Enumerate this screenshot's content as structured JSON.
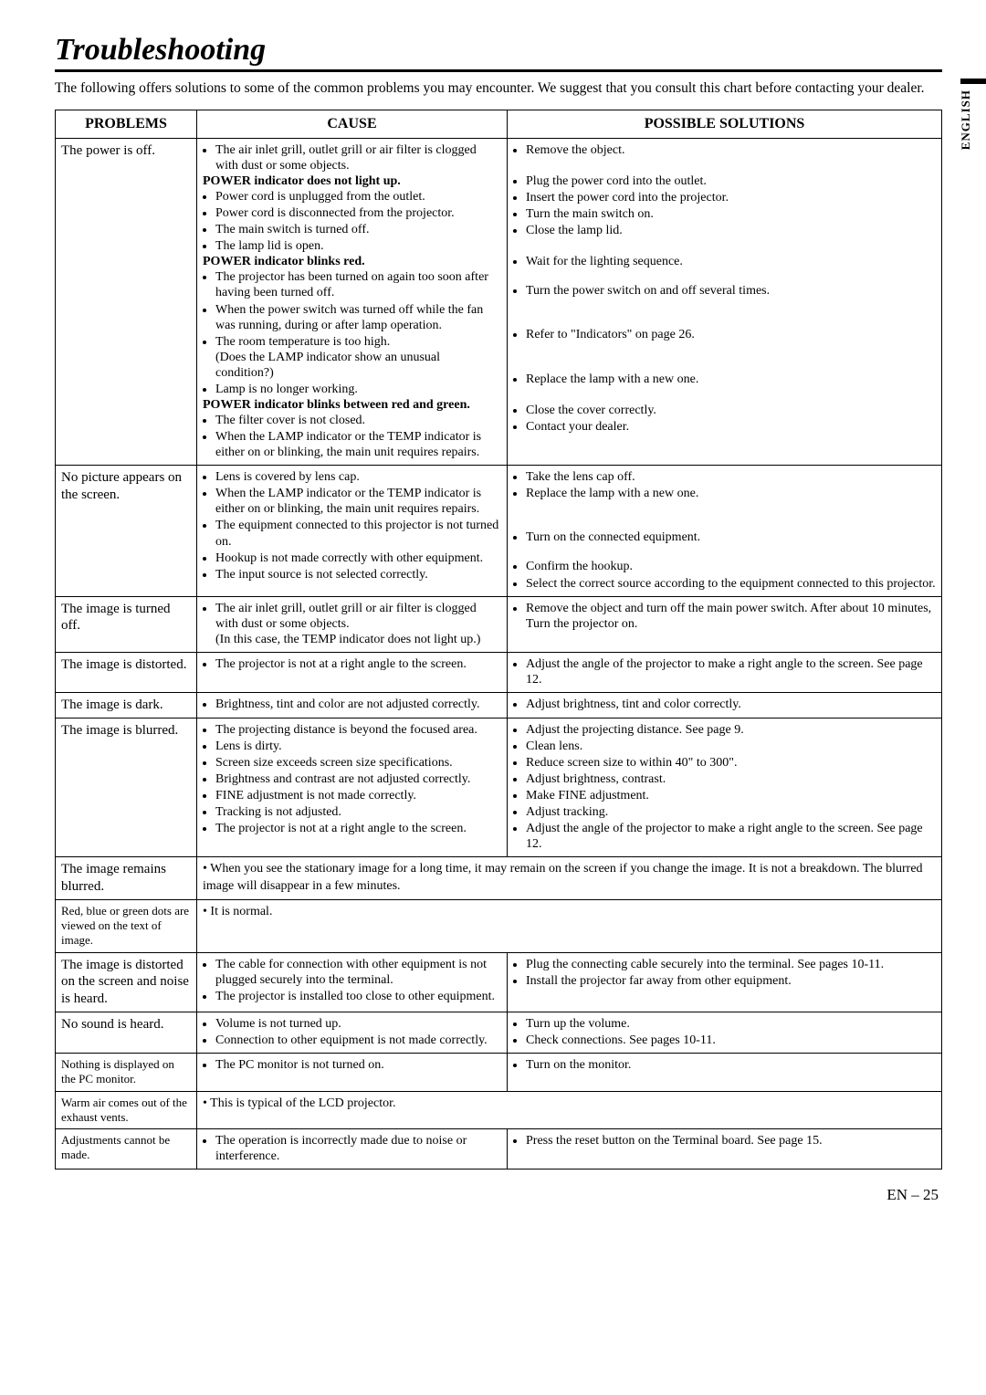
{
  "page": {
    "title": "Troubleshooting",
    "intro": "The following offers solutions to some of the common problems you may encounter. We suggest that you consult this chart before contacting your dealer.",
    "side_label": "ENGLISH",
    "footer": "EN – 25"
  },
  "headers": {
    "problems": "PROBLEMS",
    "cause": "CAUSE",
    "solutions": "POSSIBLE SOLUTIONS"
  },
  "rows": {
    "power_off": {
      "problem": "The power is off.",
      "cause_items": [
        {
          "t": "The air inlet grill, outlet grill  or air filter is clogged with dust or some objects."
        },
        {
          "t": "POWER indicator does not light up.",
          "bold": true,
          "nob": true
        },
        {
          "t": "Power cord is unplugged from the outlet."
        },
        {
          "t": "Power cord is disconnected from the projector."
        },
        {
          "t": "The main switch is turned off."
        },
        {
          "t": "The lamp lid is open."
        },
        {
          "t": "POWER indicator blinks red.",
          "bold": true,
          "nob": true
        },
        {
          "t": "The projector has been turned on again too soon after having been turned off."
        },
        {
          "t": "When the power switch was turned off while the fan was running, during or after lamp operation."
        },
        {
          "t": "The room temperature is too high.\n(Does the LAMP indicator show an unusual condition?)"
        },
        {
          "t": "Lamp is no longer working."
        },
        {
          "t": "POWER indicator blinks between red and green.",
          "bold": true,
          "nob": true
        },
        {
          "t": "The filter cover is not closed."
        },
        {
          "t": "When the LAMP indicator or the TEMP indicator is either on or blinking, the main unit requires repairs."
        }
      ],
      "sol_items": [
        {
          "t": "Remove the object."
        },
        {
          "t": "",
          "gap": true
        },
        {
          "t": "Plug the power cord into the outlet."
        },
        {
          "t": "Insert the power cord into the projector."
        },
        {
          "t": "Turn the main switch on."
        },
        {
          "t": "Close the lamp lid."
        },
        {
          "t": "",
          "gap": true
        },
        {
          "t": "Wait for the lighting sequence."
        },
        {
          "t": "",
          "gapS": true
        },
        {
          "t": "Turn the power switch on and off several times."
        },
        {
          "t": "",
          "gapL": true
        },
        {
          "t": "Refer to \"Indicators\" on page 26."
        },
        {
          "t": "",
          "gapL": true
        },
        {
          "t": "Replace the lamp with a new one."
        },
        {
          "t": "",
          "gap": true
        },
        {
          "t": "Close the cover correctly."
        },
        {
          "t": "Contact your dealer."
        }
      ]
    },
    "no_picture": {
      "problem": "No picture appears on the screen.",
      "cause_items": [
        {
          "t": "Lens is covered by lens cap."
        },
        {
          "t": "When the LAMP indicator or the TEMP indicator is either on or blinking, the main unit requires repairs."
        },
        {
          "t": "The equipment connected to this projector is not turned on."
        },
        {
          "t": "Hookup is not made correctly with other equipment."
        },
        {
          "t": "The input source is not selected correctly."
        }
      ],
      "sol_items": [
        {
          "t": "Take the lens cap off."
        },
        {
          "t": "Replace the lamp with a new one."
        },
        {
          "t": "",
          "gapL": true
        },
        {
          "t": "Turn on the connected equipment."
        },
        {
          "t": "",
          "gapS": true
        },
        {
          "t": "Confirm the hookup."
        },
        {
          "t": "Select the correct source according to the equipment connected to this projector."
        }
      ]
    },
    "image_off": {
      "problem": "The image is turned off.",
      "cause_items": [
        {
          "t": "The air inlet grill, outlet grill  or air filter is clogged with dust or some objects.\n(In this case, the TEMP indicator does not light up.)"
        }
      ],
      "sol_items": [
        {
          "t": "Remove the object and turn off the main power switch. After about 10 minutes, Turn the projector on."
        }
      ]
    },
    "distorted": {
      "problem": "The image is distorted.",
      "cause_items": [
        {
          "t": "The projector is not at a right angle to the screen."
        }
      ],
      "sol_items": [
        {
          "t": "Adjust the angle of the projector to make a right angle to the screen. See page 12."
        }
      ]
    },
    "dark": {
      "problem": "The image is dark.",
      "cause_items": [
        {
          "t": "Brightness, tint and color are not adjusted correctly."
        }
      ],
      "sol_items": [
        {
          "t": "Adjust brightness, tint and color correctly."
        }
      ]
    },
    "blurred": {
      "problem": "The image is blurred.",
      "cause_items": [
        {
          "t": "The projecting distance is beyond the focused area."
        },
        {
          "t": "Lens is dirty."
        },
        {
          "t": "Screen size exceeds screen size specifications."
        },
        {
          "t": "Brightness and contrast are not adjusted correctly."
        },
        {
          "t": "FINE adjustment is not made correctly."
        },
        {
          "t": "Tracking is not adjusted."
        },
        {
          "t": "The projector is not at a right angle to the screen."
        }
      ],
      "sol_items": [
        {
          "t": "Adjust the projecting distance. See page 9."
        },
        {
          "t": "Clean lens."
        },
        {
          "t": "Reduce screen size to within 40\" to 300\"."
        },
        {
          "t": "Adjust brightness, contrast."
        },
        {
          "t": "Make FINE adjustment."
        },
        {
          "t": "Adjust tracking."
        },
        {
          "t": "Adjust the angle of the projector to make a right angle to the screen. See page 12."
        }
      ]
    },
    "remains_blurred": {
      "problem": "The image remains blurred.",
      "note": "When  you see the stationary image for a long time, it may remain on the screen if you change the image. It is not a breakdown. The blurred image will disappear in a few minutes."
    },
    "dots": {
      "problem": "Red, blue or green dots are viewed on the text of image.",
      "note": "It is normal."
    },
    "noise": {
      "problem": "The image is distorted on the screen and noise is heard.",
      "cause_items": [
        {
          "t": "The cable for connection with other equipment is not plugged securely into the terminal."
        },
        {
          "t": "The projector is installed too close to other equipment."
        }
      ],
      "sol_items": [
        {
          "t": "Plug the connecting cable securely into the terminal. See pages 10-11."
        },
        {
          "t": "Install the projector far away from other equipment."
        }
      ]
    },
    "no_sound": {
      "problem": "No sound is heard.",
      "cause_items": [
        {
          "t": "Volume is not turned up."
        },
        {
          "t": "Connection to other equipment is not made correctly."
        }
      ],
      "sol_items": [
        {
          "t": "Turn up the volume."
        },
        {
          "t": "Check connections.  See pages 10-11."
        }
      ]
    },
    "pc_monitor": {
      "problem": "Nothing is displayed on the PC monitor.",
      "cause_items": [
        {
          "t": "The PC monitor is not turned on."
        }
      ],
      "sol_items": [
        {
          "t": "Turn on the monitor."
        }
      ]
    },
    "warm_air": {
      "problem": "Warm air comes out of the exhaust vents.",
      "note": "This is typical of the LCD projector."
    },
    "adjustments": {
      "problem": "Adjustments cannot be made.",
      "cause_items": [
        {
          "t": "The operation is incorrectly made due to noise or interference."
        }
      ],
      "sol_items": [
        {
          "t": "Press the reset button on the Terminal board. See page 15."
        }
      ]
    }
  }
}
